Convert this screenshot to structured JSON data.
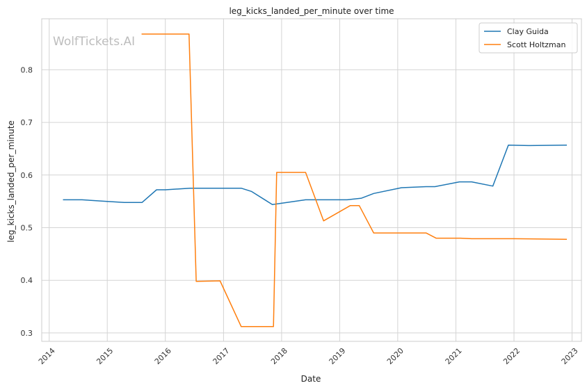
{
  "chart_data": {
    "type": "line",
    "title": "leg_kicks_landed_per_minute over time",
    "xlabel": "Date",
    "ylabel": "leg_kicks_landed_per_minute",
    "xlim": [
      "2013-11-15",
      "2023-03-01"
    ],
    "ylim": [
      0.284,
      0.897
    ],
    "grid": true,
    "legend_position": "top-right",
    "watermark": "WolfTickets.AI",
    "x_ticks": [
      {
        "date": "2014-01-01",
        "label": "2014"
      },
      {
        "date": "2015-01-01",
        "label": "2015"
      },
      {
        "date": "2016-01-01",
        "label": "2016"
      },
      {
        "date": "2017-01-01",
        "label": "2017"
      },
      {
        "date": "2018-01-01",
        "label": "2018"
      },
      {
        "date": "2019-01-01",
        "label": "2019"
      },
      {
        "date": "2020-01-01",
        "label": "2020"
      },
      {
        "date": "2021-01-01",
        "label": "2021"
      },
      {
        "date": "2022-01-01",
        "label": "2022"
      },
      {
        "date": "2023-01-01",
        "label": "2023"
      }
    ],
    "y_ticks": [
      {
        "value": 0.3,
        "label": "0.3"
      },
      {
        "value": 0.4,
        "label": "0.4"
      },
      {
        "value": 0.5,
        "label": "0.5"
      },
      {
        "value": 0.6,
        "label": "0.6"
      },
      {
        "value": 0.7,
        "label": "0.7"
      },
      {
        "value": 0.8,
        "label": "0.8"
      }
    ],
    "series": [
      {
        "name": "Clay Guida",
        "color": "#1f77b4",
        "points": [
          {
            "x": "2014-04-01",
            "y": 0.553
          },
          {
            "x": "2014-07-26",
            "y": 0.553
          },
          {
            "x": "2015-01-01",
            "y": 0.55
          },
          {
            "x": "2015-04-18",
            "y": 0.548
          },
          {
            "x": "2015-08-08",
            "y": 0.548
          },
          {
            "x": "2015-11-07",
            "y": 0.572
          },
          {
            "x": "2016-01-01",
            "y": 0.572
          },
          {
            "x": "2016-06-04",
            "y": 0.575
          },
          {
            "x": "2017-04-22",
            "y": 0.575
          },
          {
            "x": "2017-06-25",
            "y": 0.569
          },
          {
            "x": "2017-11-04",
            "y": 0.544
          },
          {
            "x": "2018-06-01",
            "y": 0.553
          },
          {
            "x": "2019-02-17",
            "y": 0.553
          },
          {
            "x": "2019-05-18",
            "y": 0.556
          },
          {
            "x": "2019-08-03",
            "y": 0.565
          },
          {
            "x": "2020-01-25",
            "y": 0.576
          },
          {
            "x": "2020-06-27",
            "y": 0.578
          },
          {
            "x": "2020-08-22",
            "y": 0.578
          },
          {
            "x": "2021-01-23",
            "y": 0.587
          },
          {
            "x": "2021-04-10",
            "y": 0.587
          },
          {
            "x": "2021-08-21",
            "y": 0.579
          },
          {
            "x": "2021-11-27",
            "y": 0.657
          },
          {
            "x": "2022-04-01",
            "y": 0.656
          },
          {
            "x": "2022-11-26",
            "y": 0.657
          }
        ]
      },
      {
        "name": "Scott Holtzman",
        "color": "#ff7f0e",
        "points": [
          {
            "x": "2015-08-08",
            "y": 0.868
          },
          {
            "x": "2016-05-29",
            "y": 0.868
          },
          {
            "x": "2016-07-13",
            "y": 0.398
          },
          {
            "x": "2016-12-10",
            "y": 0.399
          },
          {
            "x": "2017-04-22",
            "y": 0.312
          },
          {
            "x": "2017-11-11",
            "y": 0.312
          },
          {
            "x": "2017-12-01",
            "y": 0.605
          },
          {
            "x": "2018-06-01",
            "y": 0.605
          },
          {
            "x": "2018-09-22",
            "y": 0.513
          },
          {
            "x": "2019-03-09",
            "y": 0.542
          },
          {
            "x": "2019-05-04",
            "y": 0.542
          },
          {
            "x": "2019-08-03",
            "y": 0.49
          },
          {
            "x": "2020-01-18",
            "y": 0.49
          },
          {
            "x": "2020-06-27",
            "y": 0.49
          },
          {
            "x": "2020-08-29",
            "y": 0.48
          },
          {
            "x": "2021-01-30",
            "y": 0.48
          },
          {
            "x": "2021-04-10",
            "y": 0.479
          },
          {
            "x": "2022-01-01",
            "y": 0.479
          },
          {
            "x": "2022-11-26",
            "y": 0.478
          }
        ]
      }
    ]
  }
}
